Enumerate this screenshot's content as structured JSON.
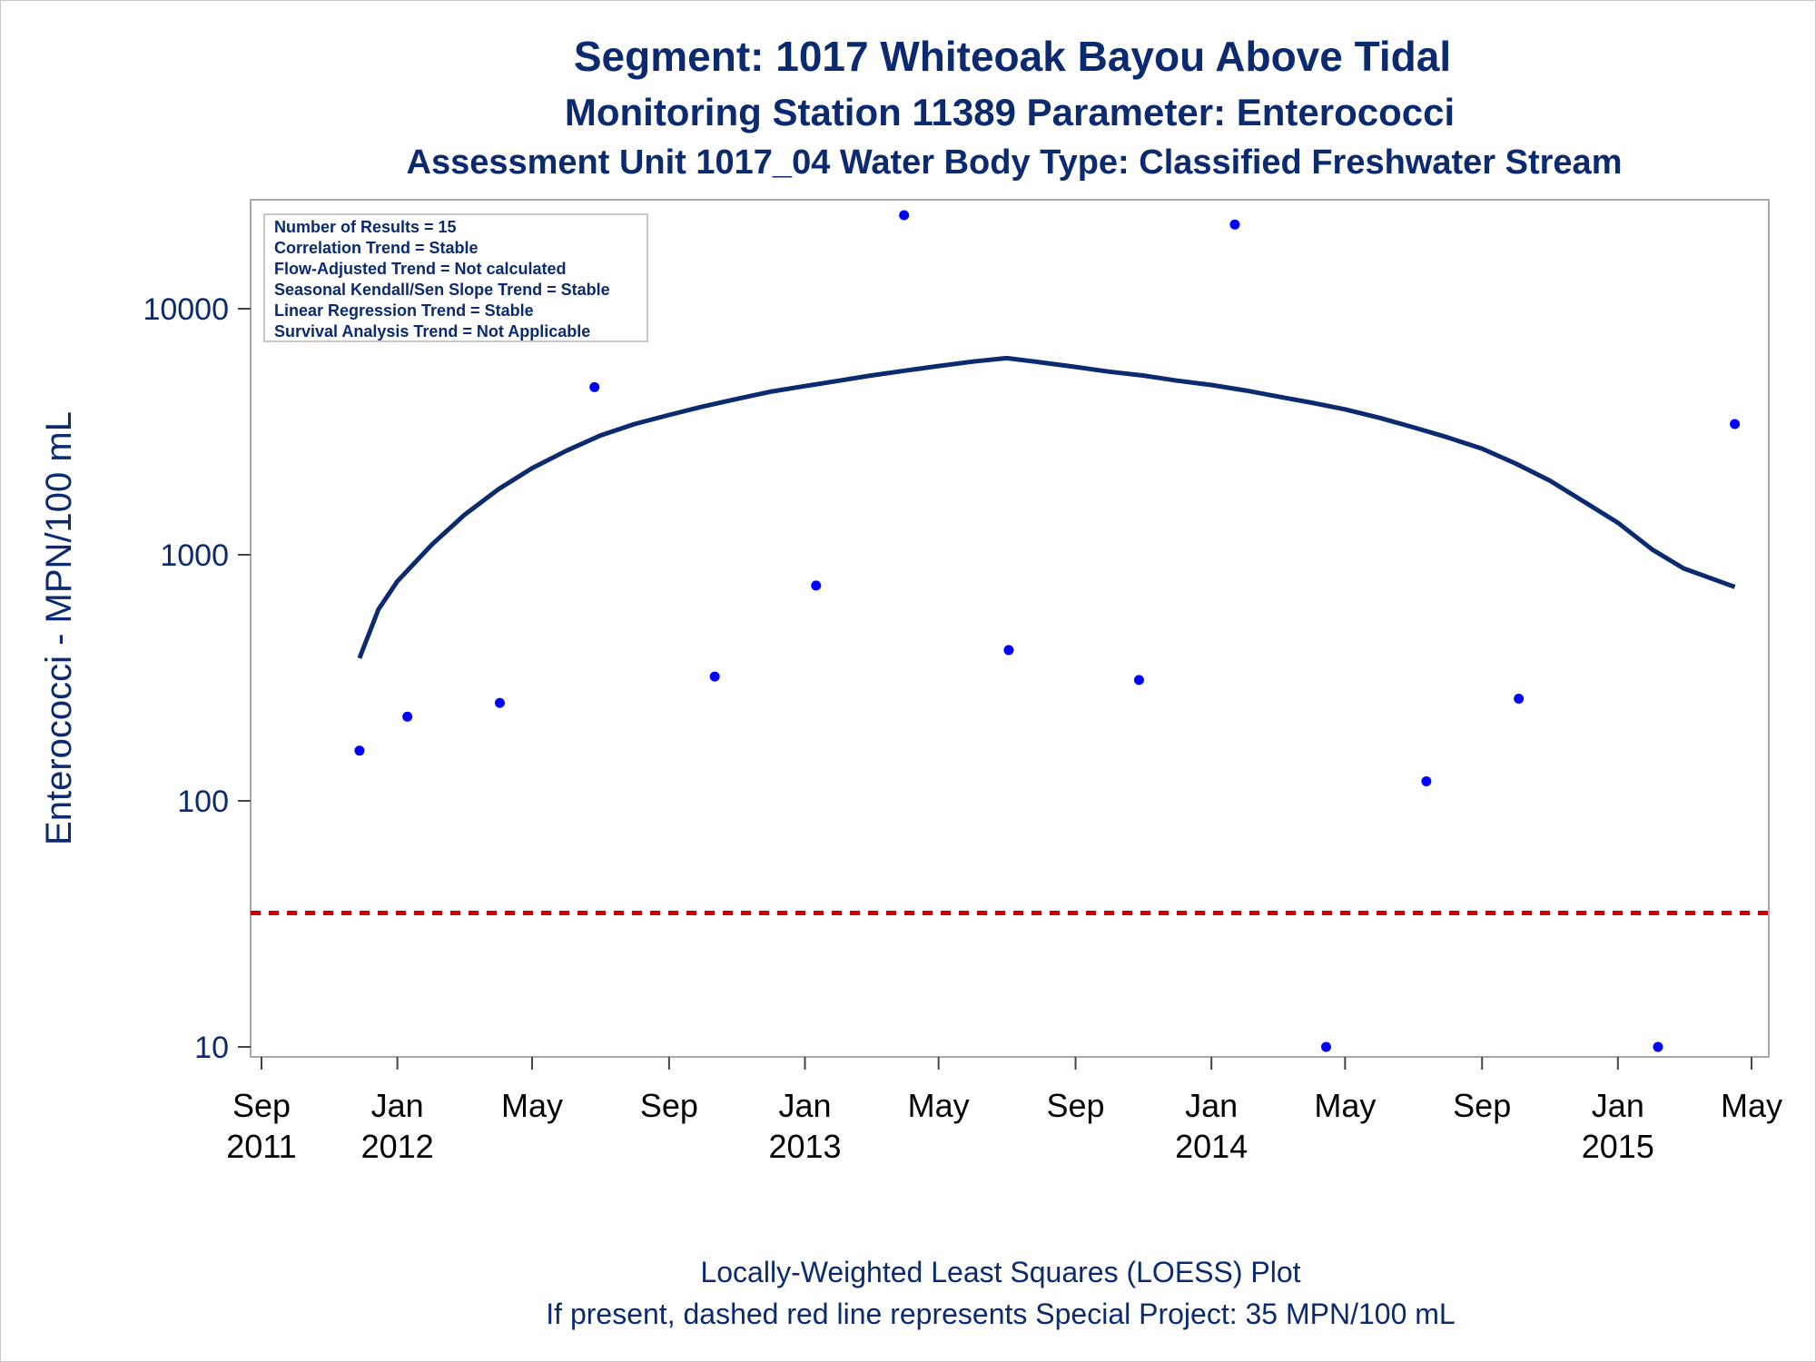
{
  "titles": {
    "line1": "Segment: 1017  Whiteoak Bayou Above Tidal",
    "line2": "Monitoring Station 11389 Parameter: Enterococci",
    "line3": "Assessment Unit 1017_04   Water Body Type: Classified Freshwater Stream"
  },
  "footnotes": {
    "line1": "Locally-Weighted Least Squares (LOESS) Plot",
    "line2": "If present, dashed red line represents Special Project: 35 MPN/100 mL"
  },
  "stats_box": [
    "Number of Results = 15",
    "Correlation Trend = Stable",
    "Flow-Adjusted Trend = Not calculated",
    "Seasonal Kendall/Sen Slope Trend = Stable",
    "Linear Regression Trend = Stable",
    "Survival Analysis Trend = Not Applicable"
  ],
  "colors": {
    "text": "#0b2a6f",
    "points": "#0000ff",
    "loess": "#0b2a6f",
    "reference": "#cc0000",
    "axis": "#888888"
  },
  "chart_data": {
    "type": "scatter",
    "title": "Segment: 1017  Whiteoak Bayou Above Tidal",
    "ylabel": "Enterococci - MPN/100 mL",
    "xlabel": "",
    "yscale": "log",
    "ylim": [
      8,
      27000
    ],
    "xlim": [
      "2011-09-01",
      "2015-05-01"
    ],
    "y_ticks": [
      10,
      100,
      1000,
      10000
    ],
    "x_ticks": [
      {
        "date": "2011-09-01",
        "month": "Sep",
        "year": "2011"
      },
      {
        "date": "2012-01-01",
        "month": "Jan",
        "year": "2012"
      },
      {
        "date": "2012-05-01",
        "month": "May",
        "year": ""
      },
      {
        "date": "2012-09-01",
        "month": "Sep",
        "year": ""
      },
      {
        "date": "2013-01-01",
        "month": "Jan",
        "year": "2013"
      },
      {
        "date": "2013-05-01",
        "month": "May",
        "year": ""
      },
      {
        "date": "2013-09-01",
        "month": "Sep",
        "year": ""
      },
      {
        "date": "2014-01-01",
        "month": "Jan",
        "year": "2014"
      },
      {
        "date": "2014-05-01",
        "month": "May",
        "year": ""
      },
      {
        "date": "2014-09-01",
        "month": "Sep",
        "year": ""
      },
      {
        "date": "2015-01-01",
        "month": "Jan",
        "year": "2015"
      },
      {
        "date": "2015-05-01",
        "month": "May",
        "year": ""
      }
    ],
    "points": [
      {
        "x": "2011-11-28",
        "y": 160
      },
      {
        "x": "2012-01-10",
        "y": 220
      },
      {
        "x": "2012-04-02",
        "y": 250
      },
      {
        "x": "2012-06-26",
        "y": 4800
      },
      {
        "x": "2012-10-12",
        "y": 320
      },
      {
        "x": "2013-01-11",
        "y": 750
      },
      {
        "x": "2013-03-31",
        "y": 24000
      },
      {
        "x": "2013-07-03",
        "y": 410
      },
      {
        "x": "2013-10-28",
        "y": 310
      },
      {
        "x": "2014-01-22",
        "y": 22000
      },
      {
        "x": "2014-04-14",
        "y": 10
      },
      {
        "x": "2014-07-13",
        "y": 120
      },
      {
        "x": "2014-10-04",
        "y": 260
      },
      {
        "x": "2015-02-06",
        "y": 10
      },
      {
        "x": "2015-04-16",
        "y": 3400
      }
    ],
    "loess": [
      {
        "x": "2011-11-28",
        "y": 380
      },
      {
        "x": "2011-12-15",
        "y": 600
      },
      {
        "x": "2012-01-01",
        "y": 780
      },
      {
        "x": "2012-02-01",
        "y": 1100
      },
      {
        "x": "2012-03-01",
        "y": 1450
      },
      {
        "x": "2012-04-01",
        "y": 1850
      },
      {
        "x": "2012-05-01",
        "y": 2250
      },
      {
        "x": "2012-06-01",
        "y": 2650
      },
      {
        "x": "2012-07-01",
        "y": 3050
      },
      {
        "x": "2012-08-01",
        "y": 3400
      },
      {
        "x": "2012-09-01",
        "y": 3700
      },
      {
        "x": "2012-10-01",
        "y": 4000
      },
      {
        "x": "2012-11-01",
        "y": 4300
      },
      {
        "x": "2012-12-01",
        "y": 4600
      },
      {
        "x": "2013-01-01",
        "y": 4850
      },
      {
        "x": "2013-02-01",
        "y": 5100
      },
      {
        "x": "2013-03-01",
        "y": 5350
      },
      {
        "x": "2013-04-01",
        "y": 5600
      },
      {
        "x": "2013-05-01",
        "y": 5850
      },
      {
        "x": "2013-06-01",
        "y": 6100
      },
      {
        "x": "2013-07-01",
        "y": 6300
      },
      {
        "x": "2013-08-01",
        "y": 6050
      },
      {
        "x": "2013-09-01",
        "y": 5800
      },
      {
        "x": "2013-10-01",
        "y": 5550
      },
      {
        "x": "2013-11-01",
        "y": 5350
      },
      {
        "x": "2013-12-01",
        "y": 5100
      },
      {
        "x": "2014-01-01",
        "y": 4900
      },
      {
        "x": "2014-02-01",
        "y": 4650
      },
      {
        "x": "2014-03-01",
        "y": 4400
      },
      {
        "x": "2014-04-01",
        "y": 4150
      },
      {
        "x": "2014-05-01",
        "y": 3900
      },
      {
        "x": "2014-06-01",
        "y": 3600
      },
      {
        "x": "2014-07-01",
        "y": 3300
      },
      {
        "x": "2014-08-01",
        "y": 3000
      },
      {
        "x": "2014-09-01",
        "y": 2700
      },
      {
        "x": "2014-10-01",
        "y": 2350
      },
      {
        "x": "2014-11-01",
        "y": 2000
      },
      {
        "x": "2014-12-01",
        "y": 1650
      },
      {
        "x": "2015-01-01",
        "y": 1350
      },
      {
        "x": "2015-02-01",
        "y": 1050
      },
      {
        "x": "2015-03-01",
        "y": 880
      },
      {
        "x": "2015-04-16",
        "y": 740
      }
    ],
    "reference_line": {
      "y": 35
    },
    "legend": "top-left",
    "grid": false
  }
}
